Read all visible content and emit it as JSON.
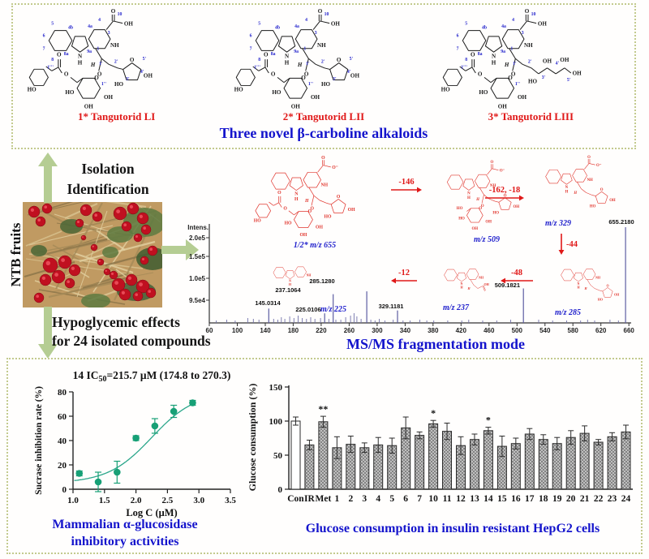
{
  "top_panel": {
    "caption": "Three novel β-carboline alkaloids",
    "structures": [
      {
        "label": "1* Tangutorid LI",
        "variant": "furanose"
      },
      {
        "label": "2* Tangutorid LII",
        "variant": "furanose"
      },
      {
        "label": "3* Tangutorid LIII",
        "variant": "open-chain"
      }
    ],
    "locants": [
      "5",
      "6",
      "7",
      "8",
      "4b",
      "4a",
      "4",
      "3",
      "10",
      "8a",
      "9a",
      "1",
      "1'",
      "2'",
      "3'",
      "4'",
      "5'",
      "1''",
      "1'''"
    ],
    "atom_labels": {
      "o": "O",
      "oh": "OH",
      "ho": "HO",
      "nh": "NH",
      "n": "N",
      "h": "H"
    }
  },
  "middle": {
    "ntb_label": "NTB fruits",
    "isolation_line1": "Isolation",
    "isolation_line2": "Identification",
    "hypoglycemic_line1": "Hypoglycemic effects",
    "hypoglycemic_line2": "for 24 isolated compounds",
    "ms_caption": "MS/MS fragmentation mode",
    "fragmentation": {
      "nodes": [
        "1/2* m/z 655",
        "m/z 509",
        "m/z 329",
        "m/z 285",
        "m/z 237",
        "m/z 225"
      ],
      "losses": [
        "-146",
        "-162, -18",
        "-44",
        "-48",
        "-12"
      ]
    }
  },
  "bottom_panel": {
    "scatter_title": {
      "prefix": "14 IC",
      "sub": "50",
      "suffix": "=215.7 μM (174.8 to 270.3)"
    },
    "left_caption_line1": "Mammalian α-glucosidase",
    "left_caption_line2": "inhibitory activities",
    "right_caption": "Glucose consumption in insulin resistant HepG2 cells"
  },
  "chart_data": [
    {
      "type": "bar",
      "subtype": "mass-spectrum",
      "title": "MS/MS fragmentation mode",
      "xlabel": "",
      "ylabel": "Intens.",
      "y_tick_labels": [
        "2.0e5",
        "1.5e5",
        "1.0e5",
        "9.5e4"
      ],
      "x_ticks": [
        60,
        100,
        140,
        180,
        220,
        260,
        300,
        340,
        380,
        420,
        460,
        500,
        540,
        580,
        620,
        660
      ],
      "xlim": [
        40,
        690
      ],
      "peaks": [
        {
          "label": "145.0314",
          "mz": 145.0314,
          "rel": 0.15
        },
        {
          "label": "225.0106",
          "mz": 225.0106,
          "rel": 0.1
        },
        {
          "label": "237.1064",
          "mz": 237.1064,
          "rel": 0.3
        },
        {
          "label": "285.1280",
          "mz": 285.128,
          "rel": 0.33
        },
        {
          "label": "329.1181",
          "mz": 329.1181,
          "rel": 0.13
        },
        {
          "label": "509.1821",
          "mz": 509.1821,
          "rel": 0.36
        },
        {
          "label": "655.2180",
          "mz": 655.218,
          "rel": 1.0
        }
      ]
    },
    {
      "type": "scatter",
      "title": "14 IC50=215.7 μM (174.8 to 270.3)",
      "xlabel": "Log C (μM)",
      "ylabel": "Sucrase inhibition rate (%)",
      "xlim": [
        1.0,
        3.5
      ],
      "ylim": [
        0,
        80
      ],
      "x_ticks": [
        1.0,
        1.5,
        2.0,
        2.5,
        3.0,
        3.5
      ],
      "y_ticks": [
        0,
        20,
        40,
        60,
        80
      ],
      "points": [
        {
          "x": 1.1,
          "y": 13,
          "err": 2
        },
        {
          "x": 1.4,
          "y": 6,
          "err": 8
        },
        {
          "x": 1.7,
          "y": 14,
          "err": 9
        },
        {
          "x": 2.0,
          "y": 42,
          "err": 2
        },
        {
          "x": 2.3,
          "y": 52,
          "err": 6
        },
        {
          "x": 2.6,
          "y": 64,
          "err": 5
        },
        {
          "x": 2.9,
          "y": 71,
          "err": 2
        }
      ],
      "fit": "sigmoid"
    },
    {
      "type": "bar",
      "ylabel": "Glucose consumption (%)",
      "ylim": [
        0,
        150
      ],
      "y_ticks": [
        0,
        50,
        100,
        150
      ],
      "categories": [
        "Con",
        "IR",
        "Met",
        "1",
        "2",
        "3",
        "4",
        "5",
        "6",
        "7",
        "10",
        "11",
        "12",
        "13",
        "14",
        "15",
        "16",
        "17",
        "18",
        "19",
        "20",
        "21",
        "22",
        "23",
        "24"
      ],
      "values": [
        100,
        65,
        99,
        61,
        66,
        61,
        65,
        64,
        90,
        79,
        96,
        85,
        64,
        73,
        86,
        63,
        67,
        81,
        73,
        67,
        76,
        82,
        69,
        77,
        84
      ],
      "errors": [
        6,
        7,
        8,
        16,
        12,
        7,
        11,
        11,
        16,
        5,
        5,
        12,
        13,
        8,
        5,
        15,
        8,
        8,
        7,
        9,
        10,
        11,
        4,
        6,
        10
      ],
      "significance": [
        "",
        "",
        "**",
        "",
        "",
        "",
        "",
        "",
        "",
        "",
        "*",
        "",
        "",
        "",
        "*",
        "",
        "",
        "",
        "",
        "",
        "",
        "",
        "",
        "",
        ""
      ]
    }
  ],
  "colors": {
    "caption_blue": "#1414cc",
    "structure_red_label": "#e01818",
    "fragment_red": "#e0342c",
    "locant_blue": "#2424cc",
    "peak_navy": "#5d5da2",
    "scatter_teal": "#17a076",
    "arrow_green": "#b5cd93",
    "border_olive": "#c3ca8e"
  }
}
